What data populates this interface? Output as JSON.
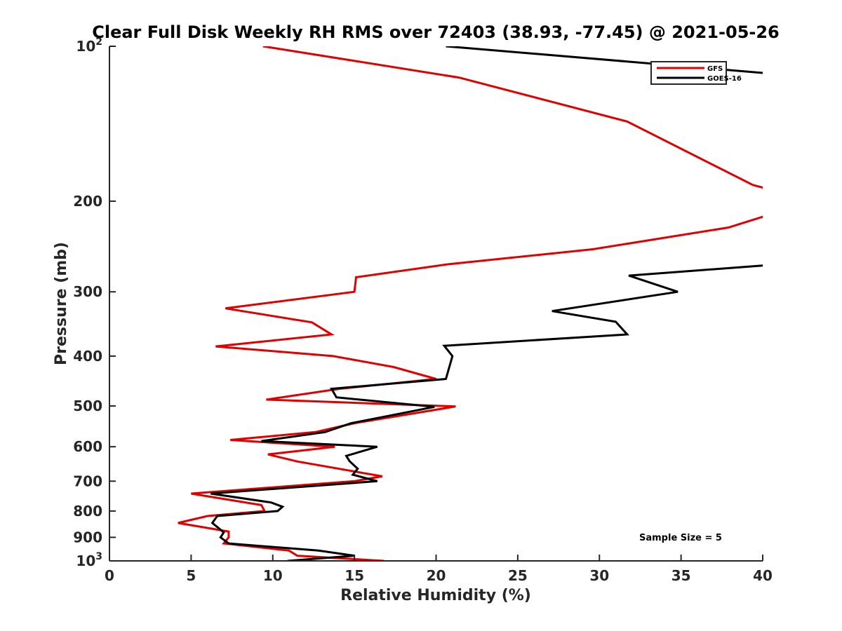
{
  "chart_data": {
    "type": "line",
    "title": "Clear Full Disk Weekly RH RMS over 72403 (38.93, -77.45) @ 2021-05-26",
    "xlabel": "Relative Humidity (%)",
    "ylabel": "Pressure (mb)",
    "xlim": [
      0,
      40
    ],
    "ylim": [
      100,
      1000
    ],
    "y_scale": "log",
    "y_reversed": true,
    "grid": false,
    "legend_position": "top-right",
    "x_ticks": [
      "0",
      "5",
      "10",
      "15",
      "20",
      "25",
      "30",
      "35",
      "40"
    ],
    "x_tick_values": [
      0,
      5,
      10,
      15,
      20,
      25,
      30,
      35,
      40
    ],
    "y_ticks": [
      {
        "value": 100,
        "base": "10",
        "exp": "2"
      },
      {
        "value": 200,
        "label": "200"
      },
      {
        "value": 300,
        "label": "300"
      },
      {
        "value": 400,
        "label": "400"
      },
      {
        "value": 500,
        "label": "500"
      },
      {
        "value": 600,
        "label": "600"
      },
      {
        "value": 700,
        "label": "700"
      },
      {
        "value": 800,
        "label": "800"
      },
      {
        "value": 900,
        "label": "900"
      },
      {
        "value": 1000,
        "base": "10",
        "exp": "3"
      }
    ],
    "annotation": "Sample Size = 5",
    "series": [
      {
        "name": "GFS",
        "color": "#e00000",
        "points": [
          [
            9.4,
            100
          ],
          [
            21.4,
            115
          ],
          [
            31.7,
            140
          ],
          [
            39.4,
            186
          ],
          [
            40.5,
            190
          ],
          [
            null,
            null
          ],
          [
            40.5,
            212
          ],
          [
            37.9,
            225
          ],
          [
            29.6,
            248
          ],
          [
            20.8,
            265
          ],
          [
            15.1,
            281
          ],
          [
            15.0,
            300
          ],
          [
            7.1,
            323
          ],
          [
            12.4,
            344
          ],
          [
            13.6,
            363
          ],
          [
            6.5,
            383
          ],
          [
            13.7,
            400
          ],
          [
            17.4,
            420
          ],
          [
            20.0,
            443
          ],
          [
            14.1,
            463
          ],
          [
            9.6,
            486
          ],
          [
            21.2,
            501
          ],
          [
            15.0,
            540
          ],
          [
            12.6,
            562
          ],
          [
            7.4,
            582
          ],
          [
            13.8,
            600
          ],
          [
            9.7,
            621
          ],
          [
            11.5,
            641
          ],
          [
            16.7,
            685
          ],
          [
            15.0,
            700
          ],
          [
            5.0,
            740
          ],
          [
            9.3,
            779
          ],
          [
            9.5,
            800
          ],
          [
            6.0,
            818
          ],
          [
            4.2,
            844
          ],
          [
            7.3,
            877
          ],
          [
            7.3,
            900
          ],
          [
            7.0,
            925
          ],
          [
            11.0,
            955
          ],
          [
            11.5,
            977
          ],
          [
            16.8,
            1000
          ]
        ]
      },
      {
        "name": "GOES-16",
        "color": "#000000",
        "points": [
          [
            20.6,
            100
          ],
          [
            40.5,
            113
          ],
          [
            null,
            null
          ],
          [
            40.5,
            266
          ],
          [
            31.8,
            279
          ],
          [
            34.8,
            300
          ],
          [
            27.1,
            327
          ],
          [
            31.0,
            343
          ],
          [
            31.7,
            363
          ],
          [
            20.5,
            382
          ],
          [
            21.0,
            400
          ],
          [
            20.6,
            443
          ],
          [
            13.6,
            463
          ],
          [
            13.9,
            481
          ],
          [
            19.9,
            502
          ],
          [
            14.8,
            540
          ],
          [
            13.2,
            562
          ],
          [
            9.3,
            585
          ],
          [
            16.4,
            600
          ],
          [
            14.5,
            625
          ],
          [
            14.7,
            640
          ],
          [
            15.2,
            662
          ],
          [
            14.9,
            680
          ],
          [
            16.4,
            700
          ],
          [
            6.2,
            740
          ],
          [
            9.9,
            770
          ],
          [
            10.6,
            785
          ],
          [
            10.3,
            800
          ],
          [
            6.6,
            818
          ],
          [
            6.3,
            844
          ],
          [
            7.0,
            880
          ],
          [
            6.8,
            900
          ],
          [
            7.3,
            925
          ],
          [
            12.8,
            955
          ],
          [
            15.0,
            977
          ],
          [
            10.9,
            1000
          ]
        ]
      }
    ]
  }
}
